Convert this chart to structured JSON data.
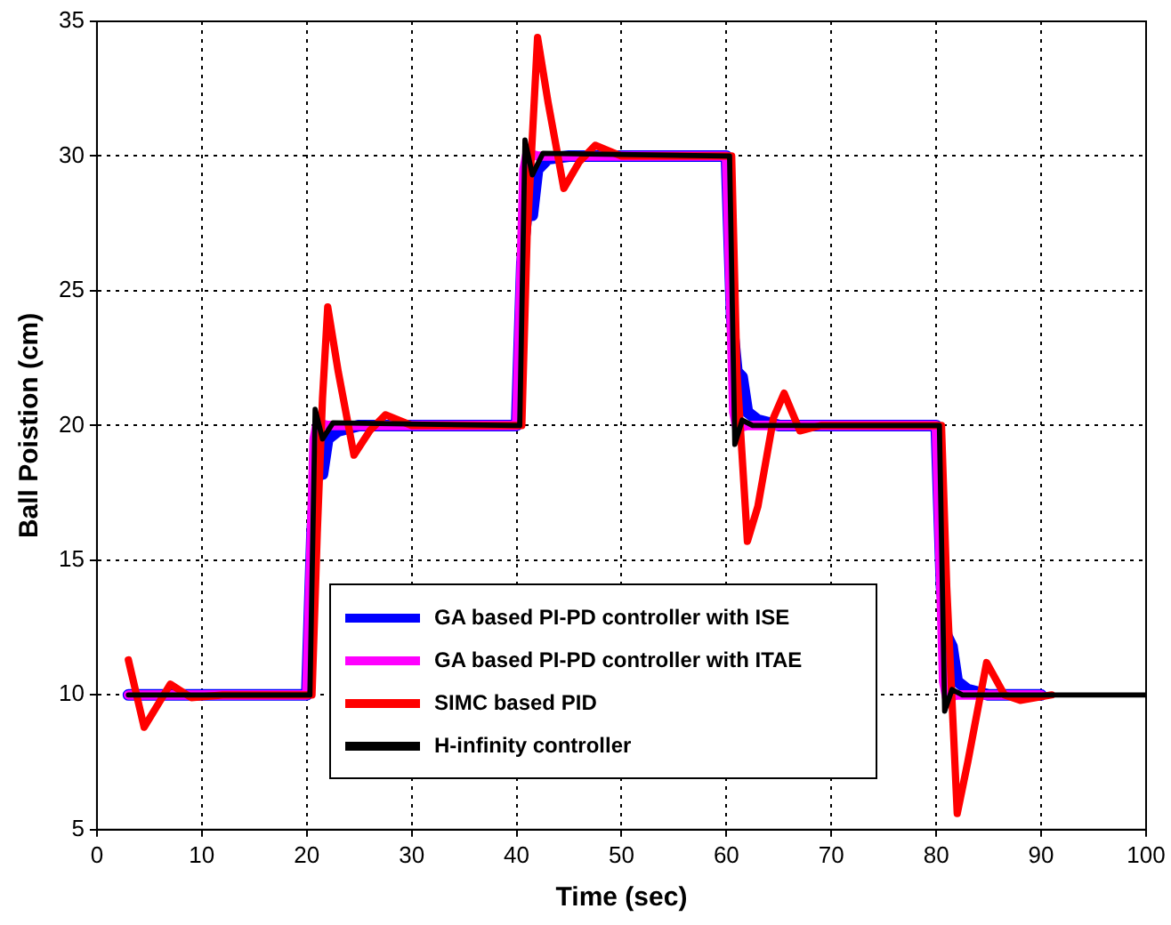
{
  "chart_data": {
    "type": "line",
    "xlabel": "Time (sec)",
    "ylabel": "Ball Poistion (cm)",
    "xlim": [
      0,
      100
    ],
    "xticks": [
      0,
      10,
      20,
      30,
      40,
      50,
      60,
      70,
      80,
      90,
      100
    ],
    "ylim": [
      5,
      35
    ],
    "yticks": [
      5,
      10,
      15,
      20,
      25,
      30,
      35
    ],
    "grid": true,
    "legend": "bottom",
    "line_style": "solid",
    "marker": "none",
    "series": [
      {
        "name": "GA based PI-PD controller with ISE",
        "color": "#0000ff",
        "x": [
          3,
          20,
          20.5,
          21,
          21.5,
          22,
          23,
          25,
          40,
          40.5,
          41,
          41.5,
          42,
          43,
          45,
          60,
          60.5,
          61,
          61.5,
          62,
          63,
          65,
          80,
          80.5,
          81,
          81.5,
          82,
          83,
          85,
          90
        ],
        "values": [
          10,
          10,
          16,
          19,
          18.2,
          19.5,
          19.8,
          20,
          20,
          26,
          28,
          27.8,
          29.5,
          29.9,
          30,
          30,
          24,
          22,
          21.8,
          20.5,
          20.2,
          20,
          20,
          14,
          12.2,
          11.8,
          10.5,
          10.2,
          10,
          10
        ]
      },
      {
        "name": "GA based PI-PD controller with ITAE",
        "color": "#ff00ff",
        "x": [
          3,
          20,
          20.7,
          21,
          22,
          40,
          40.7,
          41,
          42,
          60,
          60.7,
          61,
          62,
          80,
          80.7,
          81,
          82,
          90
        ],
        "values": [
          10,
          10,
          19.5,
          20.1,
          20,
          20,
          29.5,
          30.1,
          30,
          30,
          20.5,
          19.9,
          20,
          20,
          10.5,
          9.9,
          10,
          10
        ]
      },
      {
        "name": "SIMC based PID",
        "color": "#ff0000",
        "x": [
          3,
          4.5,
          7,
          9,
          12,
          20,
          20.5,
          21,
          21.5,
          22,
          23,
          24.5,
          26,
          27.5,
          30,
          40,
          40.5,
          41,
          42,
          43,
          44.5,
          46,
          47.5,
          50,
          60,
          60.5,
          61,
          62,
          63,
          64.5,
          65.5,
          67,
          69,
          80,
          80.5,
          81,
          82,
          83,
          84.8,
          86.5,
          88,
          91
        ],
        "values": [
          11.3,
          8.8,
          10.4,
          9.9,
          10,
          10,
          10,
          16,
          21,
          24.4,
          22,
          18.9,
          19.8,
          20.4,
          20,
          20,
          20,
          27,
          34.4,
          32,
          28.8,
          29.8,
          30.4,
          30,
          30,
          30,
          22,
          15.7,
          17,
          20.3,
          21.2,
          19.8,
          20,
          20,
          20,
          14,
          5.6,
          7.5,
          11.2,
          10,
          9.8,
          10
        ]
      },
      {
        "name": "H-infinity controller",
        "color": "#000000",
        "x": [
          3,
          20,
          20.3,
          20.8,
          21.5,
          22.5,
          40,
          40.3,
          40.8,
          41.5,
          42.5,
          60,
          60.3,
          60.8,
          61.5,
          62.5,
          80,
          80.3,
          80.8,
          81.5,
          82.5,
          100
        ],
        "values": [
          10,
          10,
          10,
          20.6,
          19.5,
          20.1,
          20,
          20,
          30.6,
          29.3,
          30.1,
          30,
          30,
          19.3,
          20.2,
          20,
          20,
          20,
          9.4,
          10.2,
          10,
          10
        ]
      }
    ]
  }
}
